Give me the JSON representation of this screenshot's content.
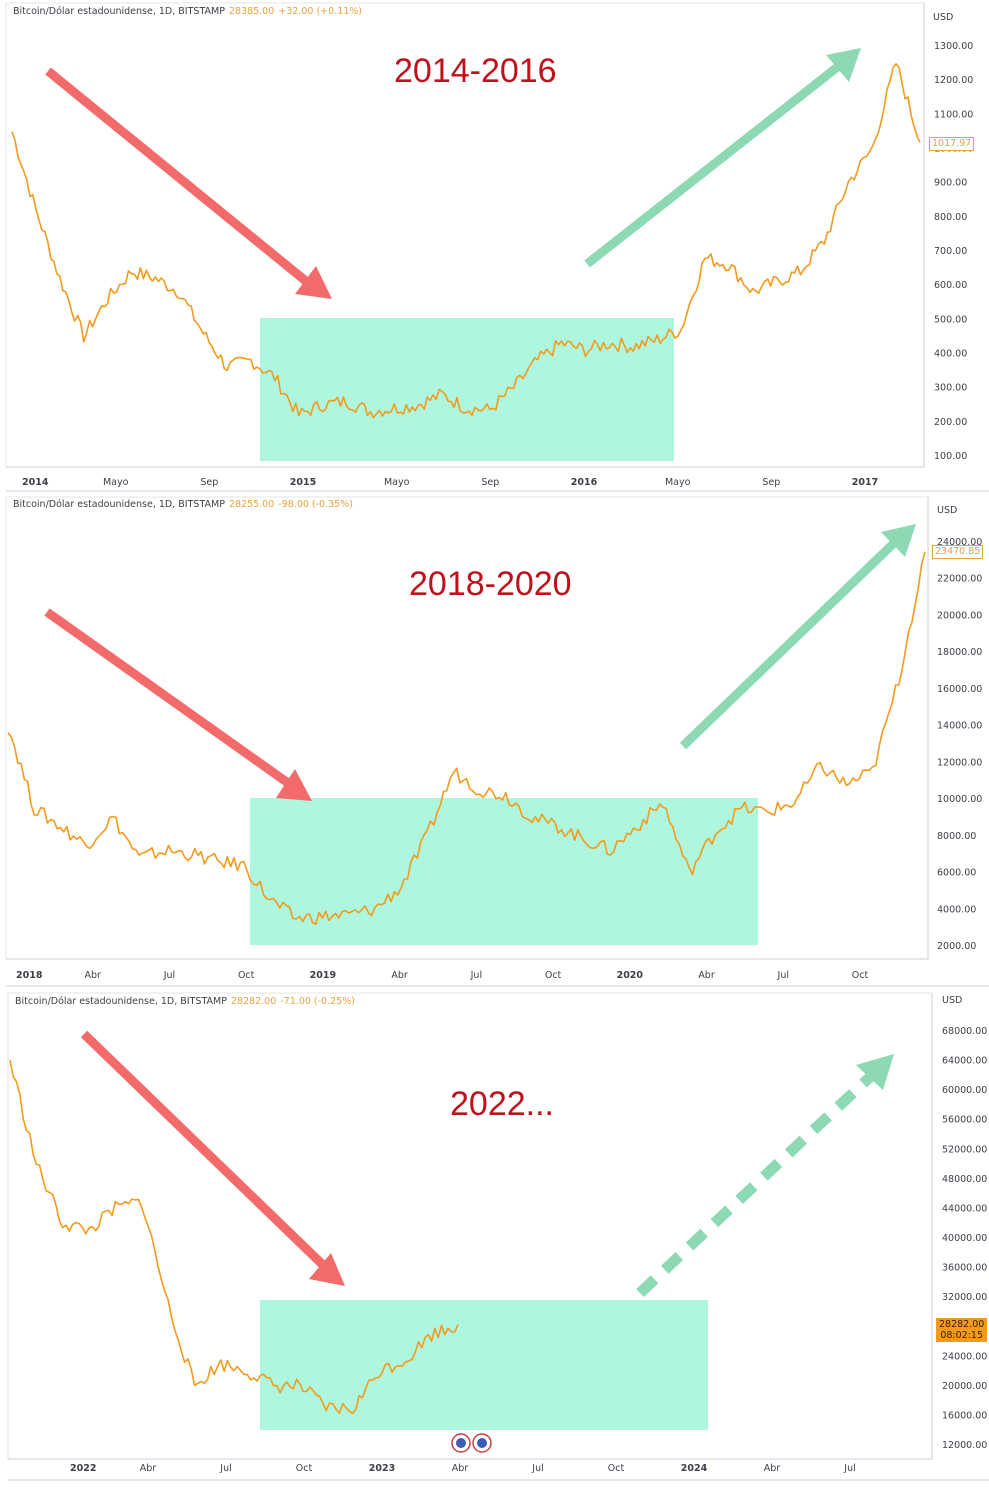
{
  "panels": [
    {
      "header": {
        "symbol": "Bitcoin/Dólar estadounidense, 1D, BITSTAMP",
        "price": "28385.00",
        "change": "+32.00 (+0.11%)"
      },
      "currency": "USD",
      "annotation": "2014-2016",
      "current_value_label": "1017.97",
      "y_ticks": [
        "1300.00",
        "1200.00",
        "1100.00",
        "1000.00",
        "900.00",
        "800.00",
        "700.00",
        "600.00",
        "500.00",
        "400.00",
        "300.00",
        "200.00",
        "100.00"
      ],
      "x_ticks": [
        {
          "label": "2014",
          "bold": true
        },
        {
          "label": "Mayo"
        },
        {
          "label": "Sep"
        },
        {
          "label": "2015",
          "bold": true
        },
        {
          "label": "Mayo"
        },
        {
          "label": "Sep"
        },
        {
          "label": "2016",
          "bold": true
        },
        {
          "label": "Mayo"
        },
        {
          "label": "Sep"
        },
        {
          "label": "2017",
          "bold": true
        }
      ]
    },
    {
      "header": {
        "symbol": "Bitcoin/Dólar estadounidense, 1D, BITSTAMP",
        "price": "28255.00",
        "change": "-98.00 (-0.35%)"
      },
      "currency": "USD",
      "annotation": "2018-2020",
      "current_value_label": "23470.85",
      "y_ticks": [
        "24000.00",
        "22000.00",
        "20000.00",
        "18000.00",
        "16000.00",
        "14000.00",
        "12000.00",
        "10000.00",
        "8000.00",
        "6000.00",
        "4000.00",
        "2000.00"
      ],
      "x_ticks": [
        {
          "label": "2018",
          "bold": true
        },
        {
          "label": "Abr"
        },
        {
          "label": "Jul"
        },
        {
          "label": "Oct"
        },
        {
          "label": "2019",
          "bold": true
        },
        {
          "label": "Abr"
        },
        {
          "label": "Jul"
        },
        {
          "label": "Oct"
        },
        {
          "label": "2020",
          "bold": true
        },
        {
          "label": "Abr"
        },
        {
          "label": "Jul"
        },
        {
          "label": "Oct"
        }
      ]
    },
    {
      "header": {
        "symbol": "Bitcoin/Dólar estadounidense, 1D, BITSTAMP",
        "price": "28282.00",
        "change": "-71.00 (-0.25%)"
      },
      "currency": "USD",
      "annotation": "2022...",
      "current_value_label": "28282.00",
      "countdown": "08:02:15",
      "y_ticks": [
        "68000.00",
        "64000.00",
        "60000.00",
        "56000.00",
        "52000.00",
        "48000.00",
        "44000.00",
        "40000.00",
        "36000.00",
        "32000.00",
        "28000.00",
        "24000.00",
        "20000.00",
        "16000.00",
        "12000.00"
      ],
      "x_ticks": [
        {
          "label": "2022",
          "bold": true
        },
        {
          "label": "Abr"
        },
        {
          "label": "Jul"
        },
        {
          "label": "Oct"
        },
        {
          "label": "2023",
          "bold": true
        },
        {
          "label": "Abr"
        },
        {
          "label": "Jul"
        },
        {
          "label": "Oct"
        },
        {
          "label": "2024",
          "bold": true
        },
        {
          "label": "Abr"
        },
        {
          "label": "Jul"
        }
      ]
    }
  ],
  "chart_data": [
    {
      "type": "line",
      "title": "Bitcoin/Dólar estadounidense, 1D, BITSTAMP",
      "ylabel": "USD",
      "ylim": [
        60,
        1360
      ],
      "x": [
        "2014-01",
        "2014-02",
        "2014-03",
        "2014-04",
        "2014-05",
        "2014-06",
        "2014-07",
        "2014-08",
        "2014-09",
        "2014-10",
        "2014-11",
        "2014-12",
        "2015-01",
        "2015-02",
        "2015-03",
        "2015-04",
        "2015-05",
        "2015-06",
        "2015-07",
        "2015-08",
        "2015-09",
        "2015-10",
        "2015-11",
        "2015-12",
        "2016-01",
        "2016-02",
        "2016-03",
        "2016-04",
        "2016-05",
        "2016-06",
        "2016-07",
        "2016-08",
        "2016-09",
        "2016-10",
        "2016-11",
        "2016-12",
        "2017-01",
        "2017-02",
        "2017-03"
      ],
      "series": [
        {
          "values": [
            1050,
            820,
            620,
            450,
            560,
            640,
            620,
            580,
            460,
            360,
            380,
            330,
            220,
            250,
            260,
            230,
            240,
            250,
            280,
            240,
            235,
            300,
            380,
            430,
            410,
            430,
            420,
            440,
            470,
            680,
            660,
            580,
            610,
            640,
            730,
            900,
            1000,
            1250,
            1017.97
          ]
        }
      ],
      "highlight_range": {
        "x_start": "2014-12",
        "x_end": "2016-05",
        "y_min": 100,
        "y_max": 500
      },
      "arrows": [
        "down",
        "up"
      ]
    },
    {
      "type": "line",
      "title": "Bitcoin/Dólar estadounidense, 1D, BITSTAMP",
      "ylabel": "USD",
      "ylim": [
        1000,
        25500
      ],
      "x": [
        "2018-01",
        "2018-02",
        "2018-03",
        "2018-04",
        "2018-05",
        "2018-06",
        "2018-07",
        "2018-08",
        "2018-09",
        "2018-10",
        "2018-11",
        "2018-12",
        "2019-01",
        "2019-02",
        "2019-03",
        "2019-04",
        "2019-05",
        "2019-06",
        "2019-07",
        "2019-08",
        "2019-09",
        "2019-10",
        "2019-11",
        "2019-12",
        "2020-01",
        "2020-02",
        "2020-03",
        "2020-04",
        "2020-05",
        "2020-06",
        "2020-07",
        "2020-08",
        "2020-09",
        "2020-10",
        "2020-11",
        "2020-12"
      ],
      "series": [
        {
          "values": [
            14000,
            9500,
            8500,
            7500,
            9000,
            6800,
            7200,
            7000,
            6600,
            6400,
            4500,
            3500,
            3600,
            3700,
            4000,
            5200,
            8000,
            11500,
            10500,
            10200,
            9000,
            8500,
            7800,
            7200,
            8500,
            9800,
            6000,
            8200,
            9500,
            9300,
            9800,
            11800,
            10800,
            11500,
            16500,
            23470.85
          ]
        }
      ],
      "highlight_range": {
        "x_start": "2018-10",
        "x_end": "2020-05",
        "y_min": 2000,
        "y_max": 10000
      },
      "arrows": [
        "down",
        "up"
      ]
    },
    {
      "type": "line",
      "title": "Bitcoin/Dólar estadounidense, 1D, BITSTAMP",
      "ylabel": "USD",
      "ylim": [
        10000,
        70000
      ],
      "x": [
        "2021-11",
        "2021-12",
        "2022-01",
        "2022-02",
        "2022-03",
        "2022-04",
        "2022-05",
        "2022-06",
        "2022-07",
        "2022-08",
        "2022-09",
        "2022-10",
        "2022-11",
        "2022-12",
        "2023-01",
        "2023-02",
        "2023-03",
        "2023-04"
      ],
      "series": [
        {
          "values": [
            64000,
            50000,
            42000,
            41000,
            44000,
            45000,
            31000,
            20000,
            23000,
            22000,
            20000,
            20000,
            17000,
            16800,
            22000,
            23500,
            27000,
            28282
          ]
        }
      ],
      "highlight_range": {
        "x_start": "2022-08",
        "x_end": "2024-01",
        "y_min": 14000,
        "y_max": 31500
      },
      "arrows": [
        "down",
        "up-dashed"
      ]
    }
  ],
  "colors": {
    "line": "#f39a1c",
    "highlight": "#aef7de",
    "down_arrow": "#f26a6a",
    "up_arrow": "#8dd9b3",
    "annotation": "#c0101b"
  }
}
